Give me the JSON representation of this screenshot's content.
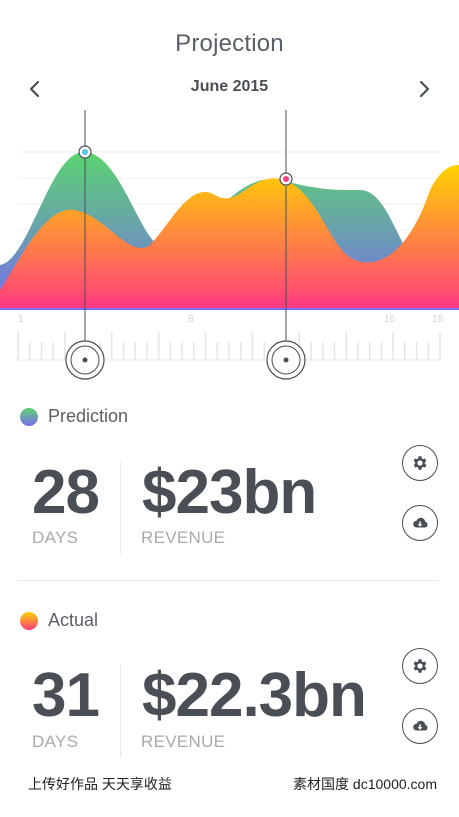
{
  "header": {
    "title": "Projection",
    "month": "June 2015"
  },
  "chart": {
    "ticks": [
      "1",
      "8",
      "16",
      "18"
    ],
    "colors": {
      "prediction_top": "#5ad36f",
      "prediction_bottom": "#7a6cf0",
      "actual_top": "#ffd200",
      "actual_bottom": "#ff3d7f",
      "marker_prediction": "#4ec9e6",
      "marker_actual": "#ff3d7f"
    }
  },
  "prediction": {
    "label": "Prediction",
    "days_value": "28",
    "days_label": "DAYS",
    "revenue_value": "$23bn",
    "revenue_label": "REVENUE"
  },
  "actual": {
    "label": "Actual",
    "days_value": "31",
    "days_label": "DAYS",
    "revenue_value": "$22.3bn",
    "revenue_label": "REVENUE"
  },
  "icons": {
    "prev": "chevron-left-icon",
    "next": "chevron-right-icon",
    "settings": "gear-icon",
    "download": "cloud-download-icon",
    "scrubber": "target-icon"
  },
  "watermark": {
    "left": "上传好作品 天天享收益",
    "right": "素材国度 dc10000.com"
  }
}
